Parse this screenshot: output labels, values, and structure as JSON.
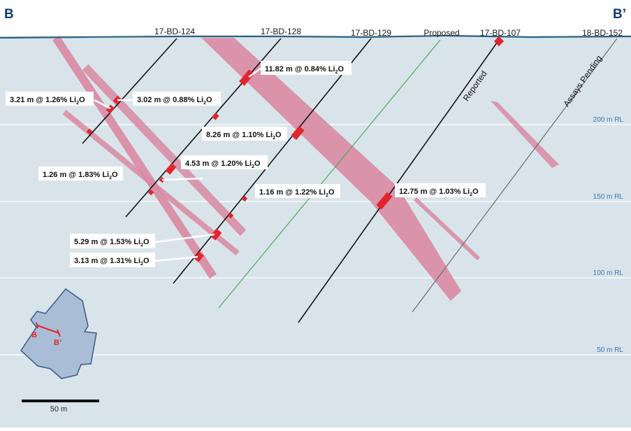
{
  "section": {
    "start_label": "B",
    "end_label": "B’"
  },
  "holes": [
    {
      "id": "17-BD-124"
    },
    {
      "id": "17-BD-128"
    },
    {
      "id": "17-BD-129"
    },
    {
      "id": "Proposed"
    },
    {
      "id": "17-BD-107"
    },
    {
      "id": "18-BD-152"
    }
  ],
  "hole_notes": {
    "reported": "Reported",
    "assays_pending": "Assays Pending"
  },
  "rl_labels": [
    "200 m RL",
    "150 m RL",
    "100 m RL",
    "50 m RL"
  ],
  "assays": [
    {
      "pre": "3.21 m @ 1.26% Li",
      "sub": "2",
      "post": "O"
    },
    {
      "pre": "3.02 m @ 0.88% Li",
      "sub": "2",
      "post": "O"
    },
    {
      "pre": "11.82 m @ 0.84% Li",
      "sub": "2",
      "post": "O"
    },
    {
      "pre": "8.26 m @ 1.10% Li",
      "sub": "2",
      "post": "O"
    },
    {
      "pre": "4.53 m @ 1.20% Li",
      "sub": "2",
      "post": "O"
    },
    {
      "pre": "1.26 m @ 1.83% Li",
      "sub": "2",
      "post": "O"
    },
    {
      "pre": "1.16 m @ 1.22% Li",
      "sub": "2",
      "post": "O"
    },
    {
      "pre": "12.75 m @ 1.03% Li",
      "sub": "2",
      "post": "O"
    },
    {
      "pre": "5.29 m @ 1.53% Li",
      "sub": "2",
      "post": "O"
    },
    {
      "pre": "3.13 m @ 1.31% Li",
      "sub": "2",
      "post": "O"
    }
  ],
  "inset": {
    "start_label": "B",
    "end_label": "B’"
  },
  "scale_bar": {
    "label": "50 m"
  },
  "colors": {
    "background": "#d9e4ea",
    "grid": "#ffffff",
    "pegmatite": "#d98aa3",
    "intercept": "#e0252f",
    "hole": "#141414",
    "proposed_hole": "#4fa85a",
    "pending_hole": "#6b6b6b",
    "topo": "#2b5e86",
    "inset_fill": "#a9bdd6",
    "inset_outline": "#3a5a86",
    "title": "#0f3e74"
  }
}
